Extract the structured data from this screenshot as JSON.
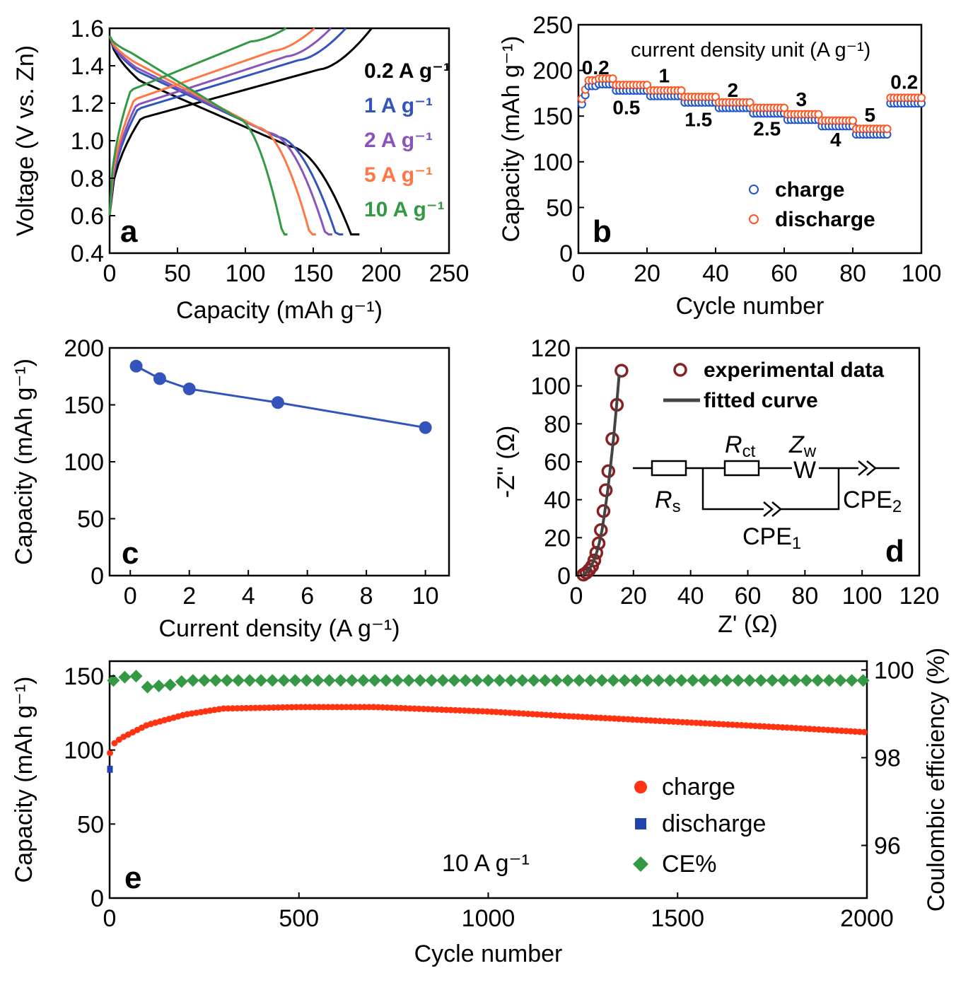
{
  "chart_data": [
    {
      "panel": "a",
      "type": "line",
      "xlabel": "Capacity (mAh g⁻¹)",
      "ylabel": "Voltage (V vs. Zn)",
      "xlim": [
        0,
        250
      ],
      "ylim": [
        0.4,
        1.6
      ],
      "xticks": [
        "0",
        "50",
        "100",
        "150",
        "200",
        "250"
      ],
      "yticks": [
        "0.4",
        "0.6",
        "0.8",
        "1.0",
        "1.2",
        "1.4",
        "1.6"
      ],
      "series": [
        {
          "name": "0.2 A g⁻¹",
          "color": "#000000",
          "discharge_capacity": 184,
          "charge_capacity": 193,
          "plateau": 1.2
        },
        {
          "name": "1 A g⁻¹",
          "color": "#3355bb",
          "discharge_capacity": 172,
          "charge_capacity": 174,
          "plateau": 1.25
        },
        {
          "name": "2 A g⁻¹",
          "color": "#8855bb",
          "discharge_capacity": 164,
          "charge_capacity": 163,
          "plateau": 1.27
        },
        {
          "name": "5 A g⁻¹",
          "color": "#ff7744",
          "discharge_capacity": 152,
          "charge_capacity": 151,
          "plateau": 1.3
        },
        {
          "name": "10 A g⁻¹",
          "color": "#339944",
          "discharge_capacity": 131,
          "charge_capacity": 130,
          "plateau": 1.35
        }
      ]
    },
    {
      "panel": "b",
      "type": "scatter",
      "xlabel": "Cycle number",
      "ylabel": "Capacity (mAh g⁻¹)",
      "xlim": [
        0,
        100
      ],
      "ylim": [
        0,
        250
      ],
      "xticks": [
        "0",
        "20",
        "40",
        "60",
        "80",
        "100"
      ],
      "yticks": [
        "0",
        "50",
        "100",
        "150",
        "200",
        "250"
      ],
      "annotation": "current density unit (A g⁻¹)",
      "rate_labels": [
        {
          "text": "0.2",
          "x": 5,
          "y": 196
        },
        {
          "text": "0.5",
          "x": 14,
          "y": 152
        },
        {
          "text": "1",
          "x": 25,
          "y": 187
        },
        {
          "text": "1.5",
          "x": 35,
          "y": 139
        },
        {
          "text": "2",
          "x": 45,
          "y": 171
        },
        {
          "text": "2.5",
          "x": 55,
          "y": 129
        },
        {
          "text": "3",
          "x": 65,
          "y": 161
        },
        {
          "text": "4",
          "x": 75,
          "y": 117
        },
        {
          "text": "5",
          "x": 85,
          "y": 144
        },
        {
          "text": "0.2",
          "x": 95,
          "y": 180
        }
      ],
      "segments": [
        {
          "rate": "0.2",
          "cycles": [
            1,
            10
          ],
          "capacity": 185
        },
        {
          "rate": "0.5",
          "cycles": [
            11,
            20
          ],
          "capacity": 180
        },
        {
          "rate": "1",
          "cycles": [
            21,
            30
          ],
          "capacity": 174
        },
        {
          "rate": "1.5",
          "cycles": [
            31,
            40
          ],
          "capacity": 167
        },
        {
          "rate": "2",
          "cycles": [
            41,
            50
          ],
          "capacity": 161
        },
        {
          "rate": "2.5",
          "cycles": [
            51,
            60
          ],
          "capacity": 155
        },
        {
          "rate": "3",
          "cycles": [
            61,
            70
          ],
          "capacity": 148
        },
        {
          "rate": "4",
          "cycles": [
            71,
            80
          ],
          "capacity": 141
        },
        {
          "rate": "5",
          "cycles": [
            81,
            90
          ],
          "capacity": 132
        },
        {
          "rate": "0.2",
          "cycles": [
            91,
            100
          ],
          "capacity": 166
        }
      ],
      "series": [
        {
          "name": "charge",
          "color": "#2255cc"
        },
        {
          "name": "discharge",
          "color": "#ff5522"
        }
      ]
    },
    {
      "panel": "c",
      "type": "line",
      "xlabel": "Current density (A g⁻¹)",
      "ylabel": "Capacity (mAh g⁻¹)",
      "xlim": [
        -0.7,
        10.8
      ],
      "ylim": [
        0,
        200
      ],
      "xticks": [
        "0",
        "2",
        "4",
        "6",
        "8",
        "10"
      ],
      "yticks": [
        "0",
        "50",
        "100",
        "150",
        "200"
      ],
      "x": [
        0.2,
        1,
        2,
        5,
        10
      ],
      "values": [
        184,
        173,
        164,
        152,
        130
      ],
      "color": "#3355bb"
    },
    {
      "panel": "d",
      "type": "scatter",
      "xlabel": "Z' (Ω)",
      "ylabel": "-Z'' (Ω)",
      "xlim": [
        0,
        120
      ],
      "ylim": [
        0,
        120
      ],
      "xticks": [
        "0",
        "20",
        "40",
        "60",
        "80",
        "100",
        "120"
      ],
      "yticks": [
        "0",
        "20",
        "40",
        "60",
        "80",
        "100",
        "120"
      ],
      "series": [
        {
          "name": "experimental data",
          "color": "#882222",
          "x": [
            2.5,
            3.5,
            4.5,
            5.5,
            6.3,
            7.0,
            7.8,
            8.6,
            9.5,
            10.3,
            11.2,
            12.6,
            14.2,
            15.8
          ],
          "y": [
            0.5,
            1.5,
            3.0,
            5.0,
            8.0,
            12.0,
            17.0,
            24.0,
            34.0,
            45.0,
            55.0,
            72.0,
            90.0,
            108.0
          ]
        },
        {
          "name": "fitted curve",
          "color": "#444444",
          "x": [
            2,
            3,
            4,
            5,
            6,
            7,
            8,
            9,
            10,
            11,
            12,
            13,
            14,
            15
          ],
          "y": [
            0,
            1,
            2.5,
            4.5,
            7.5,
            11.5,
            17,
            24,
            34,
            45,
            58,
            72,
            88,
            106
          ]
        }
      ],
      "circuit_labels": {
        "rs": "R",
        "rs_sub": "s",
        "rct": "R",
        "rct_sub": "ct",
        "zw": "Z",
        "zw_sub": "w",
        "w": "W",
        "cpe1": "CPE",
        "cpe1_sub": "1",
        "cpe2": "CPE",
        "cpe2_sub": "2"
      }
    },
    {
      "panel": "e",
      "type": "scatter",
      "xlabel": "Cycle number",
      "ylabel": "Capacity (mAh g⁻¹)",
      "y2label": "Coulombic efficiency (%)",
      "xlim": [
        0,
        2000
      ],
      "ylim": [
        0,
        160
      ],
      "y2lim": [
        94.8,
        100.2
      ],
      "xticks": [
        "0",
        "500",
        "1000",
        "1500",
        "2000"
      ],
      "yticks": [
        "0",
        "50",
        "100",
        "150"
      ],
      "y2ticks": [
        "96",
        "98",
        "100"
      ],
      "annotation": "10 A g⁻¹",
      "capacity_profile": {
        "x": [
          1,
          10,
          30,
          100,
          200,
          300,
          500,
          700,
          1000,
          1200,
          1500,
          1800,
          2000
        ],
        "y": [
          98,
          104,
          108,
          117,
          124,
          128,
          129,
          129,
          126,
          123,
          119,
          115,
          112
        ]
      },
      "ce_profile": {
        "x": [
          10,
          50,
          80,
          100,
          160,
          200,
          2000
        ],
        "y": [
          99.8,
          99.9,
          99.9,
          99.65,
          99.7,
          99.8,
          99.8
        ]
      },
      "first_discharge": 87,
      "series": [
        {
          "name": "charge",
          "color": "#ff3311"
        },
        {
          "name": "discharge",
          "color": "#2244aa"
        },
        {
          "name": "CE%",
          "color": "#339944"
        }
      ]
    }
  ]
}
